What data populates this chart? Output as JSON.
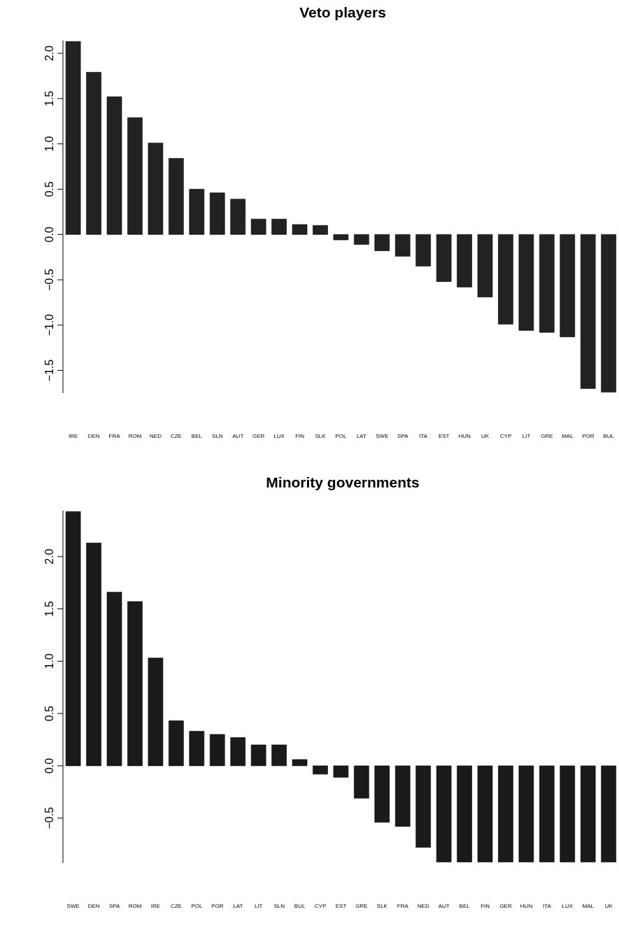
{
  "chart_data": [
    {
      "type": "bar",
      "title": "Veto players",
      "categories": [
        "IRE",
        "DEN",
        "FRA",
        "ROM",
        "NED",
        "CZE",
        "BEL",
        "SLN",
        "AUT",
        "GER",
        "LUX",
        "FIN",
        "SLK",
        "POL",
        "LAT",
        "SWE",
        "SPA",
        "ITA",
        "EST",
        "HUN",
        "UK",
        "CYP",
        "LIT",
        "GRE",
        "MAL",
        "POR",
        "BUL"
      ],
      "values": [
        2.13,
        1.79,
        1.52,
        1.29,
        1.01,
        0.84,
        0.5,
        0.46,
        0.39,
        0.17,
        0.17,
        0.11,
        0.1,
        -0.06,
        -0.11,
        -0.18,
        -0.24,
        -0.35,
        -0.52,
        -0.58,
        -0.69,
        -0.99,
        -1.06,
        -1.08,
        -1.13,
        -1.7,
        -1.74
      ],
      "color": "#222222",
      "ylim": [
        -1.75,
        2.14
      ],
      "yticks": [
        {
          "value": -1.5,
          "label": "−1.5"
        },
        {
          "value": -1,
          "label": "−1.0"
        },
        {
          "value": -0.5,
          "label": "−0.5"
        },
        {
          "value": 0,
          "label": "0.0"
        },
        {
          "value": 0.5,
          "label": "0.5"
        },
        {
          "value": 1,
          "label": "1.0"
        },
        {
          "value": 1.5,
          "label": "1.5"
        },
        {
          "value": 2,
          "label": "2.0"
        }
      ],
      "grid": false,
      "legend": false
    },
    {
      "type": "bar",
      "title": "Minority governments",
      "categories": [
        "SWE",
        "DEN",
        "SPA",
        "ROM",
        "IRE",
        "CZE",
        "POL",
        "POR",
        "LAT",
        "LIT",
        "SLN",
        "BUL",
        "CYP",
        "EST",
        "GRE",
        "SLK",
        "FRA",
        "NED",
        "AUT",
        "BEL",
        "FIN",
        "GER",
        "HUN",
        "ITA",
        "LUX",
        "MAL",
        "UK"
      ],
      "values": [
        2.43,
        2.13,
        1.66,
        1.57,
        1.03,
        0.43,
        0.33,
        0.3,
        0.27,
        0.2,
        0.2,
        0.06,
        -0.08,
        -0.11,
        -0.31,
        -0.54,
        -0.58,
        -0.78,
        -0.92,
        -0.92,
        -0.92,
        -0.92,
        -0.92,
        -0.92,
        -0.92,
        -0.92,
        -0.92
      ],
      "color": "#1a1a1a",
      "ylim": [
        -0.93,
        2.44
      ],
      "yticks": [
        {
          "value": -0.5,
          "label": "−0.5"
        },
        {
          "value": 0,
          "label": "0.0"
        },
        {
          "value": 0.5,
          "label": "0.5"
        },
        {
          "value": 1,
          "label": "1.0"
        },
        {
          "value": 1.5,
          "label": "1.5"
        },
        {
          "value": 2,
          "label": "2.0"
        }
      ],
      "grid": false,
      "legend": false
    }
  ]
}
